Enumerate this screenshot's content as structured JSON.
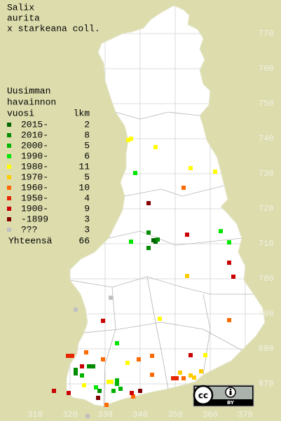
{
  "title": [
    "Salix",
    "aurita",
    "x starkeana coll."
  ],
  "legend": {
    "header": [
      "Uusimman",
      "havainnon",
      "vuosi"
    ],
    "count_header": "lkm",
    "items": [
      {
        "label": "2015-",
        "count": 2,
        "color": "#006400",
        "points": [
          [
            344.4,
            710.6
          ],
          [
            343.8,
            711.0
          ]
        ]
      },
      {
        "label": "2010-",
        "count": 8,
        "color": "#008c00",
        "points": [
          [
            342.4,
            713.2
          ],
          [
            342.4,
            708.8
          ],
          [
            345.0,
            711.2
          ],
          [
            325.4,
            675.0
          ],
          [
            326.6,
            675.0
          ],
          [
            321.6,
            674.0
          ],
          [
            321.6,
            673.0
          ],
          [
            328.4,
            668.0
          ]
        ]
      },
      {
        "label": "2000-",
        "count": 5,
        "color": "#00b400",
        "points": [
          [
            332.4,
            668.0
          ],
          [
            333.4,
            671.0
          ],
          [
            333.4,
            670.0
          ],
          [
            334.4,
            668.6
          ],
          [
            323.4,
            672.4
          ]
        ]
      },
      {
        "label": "1990-",
        "count": 6,
        "color": "#00e600",
        "points": [
          [
            338.6,
            730.2
          ],
          [
            337.4,
            710.6
          ],
          [
            363.0,
            713.6
          ],
          [
            365.4,
            710.4
          ],
          [
            333.4,
            681.6
          ],
          [
            327.4,
            669.0
          ]
        ]
      },
      {
        "label": "1980-",
        "count": 11,
        "color": "#ffff00",
        "points": [
          [
            336.6,
            739.6
          ],
          [
            337.4,
            740.0
          ],
          [
            344.4,
            737.6
          ],
          [
            354.4,
            731.6
          ],
          [
            361.4,
            730.6
          ],
          [
            345.6,
            688.6
          ],
          [
            336.4,
            676.0
          ],
          [
            358.6,
            678.2
          ],
          [
            331.0,
            670.6
          ],
          [
            331.8,
            670.6
          ],
          [
            324.0,
            669.6
          ]
        ]
      },
      {
        "label": "1970-",
        "count": 5,
        "color": "#ffcc00",
        "points": [
          [
            353.4,
            700.8
          ],
          [
            351.4,
            673.2
          ],
          [
            354.4,
            672.4
          ],
          [
            355.4,
            671.8
          ],
          [
            357.4,
            673.6
          ]
        ]
      },
      {
        "label": "1960-",
        "count": 10,
        "color": "#ff6a00",
        "points": [
          [
            352.4,
            726.0
          ],
          [
            365.4,
            688.2
          ],
          [
            324.6,
            679.0
          ],
          [
            339.6,
            677.0
          ],
          [
            343.4,
            678.0
          ],
          [
            343.4,
            672.6
          ],
          [
            329.4,
            677.0
          ],
          [
            338.0,
            666.4
          ],
          [
            330.4,
            664.0
          ],
          [
            352.4,
            671.6
          ]
        ]
      },
      {
        "label": "1950-",
        "count": 4,
        "color": "#e62800",
        "points": [
          [
            319.4,
            678.0
          ],
          [
            320.6,
            678.0
          ],
          [
            349.4,
            671.6
          ],
          [
            350.4,
            671.6
          ]
        ]
      },
      {
        "label": "1900-",
        "count": 9,
        "color": "#c80000",
        "points": [
          [
            353.4,
            712.6
          ],
          [
            365.4,
            704.6
          ],
          [
            366.6,
            700.6
          ],
          [
            329.4,
            688.0
          ],
          [
            354.4,
            678.2
          ],
          [
            323.4,
            675.0
          ],
          [
            319.6,
            667.4
          ],
          [
            337.6,
            667.4
          ],
          [
            315.4,
            668.0
          ]
        ]
      },
      {
        "label": "-1899",
        "count": 3,
        "color": "#820000",
        "points": [
          [
            342.4,
            721.6
          ],
          [
            340.0,
            668.0
          ],
          [
            328.0,
            666.0
          ]
        ]
      },
      {
        "label": "???",
        "count": 3,
        "color": "#c0c0c0",
        "points": [
          [
            321.6,
            691.2
          ],
          [
            331.6,
            694.6
          ],
          [
            325.0,
            660.8
          ]
        ]
      }
    ],
    "total_label": "Yhteensä",
    "total": 66
  },
  "grid": {
    "east_ticks": [
      310,
      320,
      330,
      340,
      350,
      360,
      370
    ],
    "north_ticks": [
      670,
      680,
      690,
      700,
      710,
      720,
      730,
      740,
      750,
      760,
      770
    ],
    "xlim": [
      300,
      380.2
    ],
    "ylim": [
      659.4,
      779.6
    ]
  },
  "license": {
    "logo": "cc",
    "tag": "BY"
  }
}
